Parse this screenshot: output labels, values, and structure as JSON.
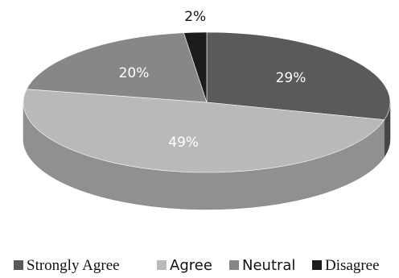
{
  "chart_data": {
    "type": "pie",
    "style": "3d",
    "categories": [
      "Strongly Agree",
      "Agree",
      "Neutral",
      "Disagree"
    ],
    "values": [
      29,
      49,
      20,
      2
    ],
    "data_labels": [
      "29%",
      "49%",
      "20%",
      "2%"
    ],
    "colors": [
      "#5a5a5a",
      "#b9b9b9",
      "#878787",
      "#1c1c1c"
    ],
    "label_colors": [
      "#ffffff",
      "#ffffff",
      "#ffffff",
      "#111111"
    ],
    "legend_position": "bottom",
    "title": "",
    "xlabel": "",
    "ylabel": ""
  }
}
